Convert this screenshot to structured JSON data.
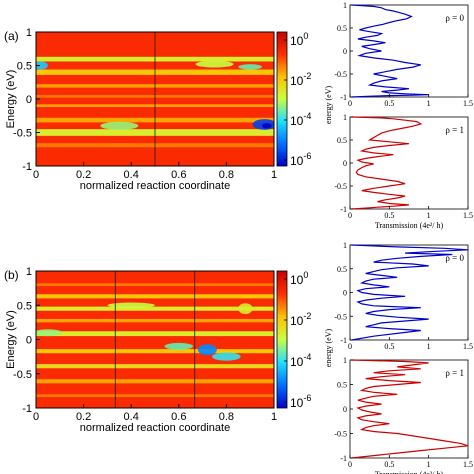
{
  "chart_data": [
    {
      "id": "a-heatmap",
      "type": "heatmap",
      "panel_label": "(a)",
      "xlabel": "normalized reaction coordinate",
      "ylabel": "Energy (eV)",
      "xlim": [
        0,
        1
      ],
      "ylim": [
        -1,
        1
      ],
      "xticks": [
        "0",
        "0.2",
        "0.4",
        "0.6",
        "0.8",
        "1"
      ],
      "yticks": [
        "-1",
        "-0.5",
        "0",
        "0.5",
        "1"
      ],
      "vlines": [
        0.5
      ],
      "colorbar": {
        "scale": "log",
        "range": [
          1e-06,
          1
        ],
        "labels": [
          "10^0",
          "10^-2",
          "10^-4",
          "10^-6"
        ]
      },
      "bands": [
        {
          "e0": 0.56,
          "e1": 0.63,
          "level": 0.55
        },
        {
          "e0": 0.36,
          "e1": 0.44,
          "level": 0.65
        },
        {
          "e0": 0.17,
          "e1": 0.22,
          "level": 0.7
        },
        {
          "e0": 0.02,
          "e1": 0.06,
          "level": 0.75
        },
        {
          "e0": -0.12,
          "e1": -0.08,
          "level": 0.7
        },
        {
          "e0": -0.35,
          "e1": -0.28,
          "level": 0.7
        },
        {
          "e0": -0.55,
          "e1": -0.45,
          "level": 0.55
        },
        {
          "e0": -0.72,
          "e1": -0.66,
          "level": 0.75
        }
      ],
      "spots": [
        {
          "x": 0.02,
          "y": 0.5,
          "rx": 0.03,
          "ry": 0.06,
          "level": 0.3
        },
        {
          "x": 0.75,
          "y": 0.52,
          "rx": 0.08,
          "ry": 0.05,
          "level": 0.5
        },
        {
          "x": 0.9,
          "y": 0.48,
          "rx": 0.05,
          "ry": 0.04,
          "level": 0.4
        },
        {
          "x": 0.35,
          "y": -0.4,
          "rx": 0.08,
          "ry": 0.06,
          "level": 0.45
        },
        {
          "x": 0.96,
          "y": -0.38,
          "rx": 0.05,
          "ry": 0.08,
          "level": 0.1
        },
        {
          "x": 0.97,
          "y": -0.4,
          "rx": 0.02,
          "ry": 0.04,
          "level": 0.0
        }
      ]
    },
    {
      "id": "b-heatmap",
      "type": "heatmap",
      "panel_label": "(b)",
      "xlabel": "normalized reaction coordinate",
      "ylabel": "Energy (eV)",
      "xlim": [
        0,
        1
      ],
      "ylim": [
        -1,
        1
      ],
      "xticks": [
        "0",
        "0.2",
        "0.4",
        "0.6",
        "0.8",
        "1"
      ],
      "yticks": [
        "-1",
        "-0.5",
        "0",
        "0.5",
        "1"
      ],
      "vlines": [
        0.333,
        0.667
      ],
      "colorbar": {
        "scale": "log",
        "range": [
          1e-06,
          1
        ],
        "labels": [
          "10^0",
          "10^-2",
          "10^-4",
          "10^-6"
        ]
      },
      "bands": [
        {
          "e0": 0.78,
          "e1": 0.82,
          "level": 0.75
        },
        {
          "e0": 0.6,
          "e1": 0.66,
          "level": 0.65
        },
        {
          "e0": 0.42,
          "e1": 0.48,
          "level": 0.55
        },
        {
          "e0": 0.25,
          "e1": 0.3,
          "level": 0.7
        },
        {
          "e0": 0.05,
          "e1": 0.12,
          "level": 0.55
        },
        {
          "e0": -0.2,
          "e1": -0.14,
          "level": 0.65
        },
        {
          "e0": -0.42,
          "e1": -0.36,
          "level": 0.6
        },
        {
          "e0": -0.64,
          "e1": -0.58,
          "level": 0.7
        },
        {
          "e0": -0.84,
          "e1": -0.8,
          "level": 0.75
        }
      ],
      "spots": [
        {
          "x": 0.05,
          "y": 0.1,
          "rx": 0.06,
          "ry": 0.05,
          "level": 0.45
        },
        {
          "x": 0.4,
          "y": 0.5,
          "rx": 0.1,
          "ry": 0.04,
          "level": 0.5
        },
        {
          "x": 0.6,
          "y": -0.1,
          "rx": 0.06,
          "ry": 0.05,
          "level": 0.4
        },
        {
          "x": 0.72,
          "y": -0.15,
          "rx": 0.04,
          "ry": 0.08,
          "level": 0.2
        },
        {
          "x": 0.8,
          "y": -0.25,
          "rx": 0.06,
          "ry": 0.06,
          "level": 0.35
        },
        {
          "x": 0.88,
          "y": 0.45,
          "rx": 0.03,
          "ry": 0.08,
          "level": 0.55
        }
      ]
    },
    {
      "id": "a-top",
      "type": "line",
      "annotation": "ρ = 0",
      "xlim": [
        0,
        1.5
      ],
      "ylim": [
        -1,
        1
      ],
      "xticks": [
        "0",
        "0.5",
        "1",
        "1.5"
      ],
      "yticks": [
        "-1",
        "-0.5",
        "0",
        "0.5",
        "1"
      ],
      "ylabel": "energy (eV)",
      "color": "#0000cc",
      "series": [
        {
          "x": [
            0.02,
            0.3,
            0.4,
            0.45,
            0.55,
            0.62,
            0.7,
            0.78,
            0.72,
            0.6,
            0.5,
            0.42,
            0.3,
            0.2,
            0.12,
            0.25,
            0.4,
            0.35,
            0.2,
            0.1,
            0.3,
            0.45,
            0.3,
            0.15,
            0.25,
            0.4,
            0.2,
            0.12,
            0.3,
            0.55,
            0.7,
            0.9,
            0.8,
            0.6,
            0.45,
            0.3,
            0.45,
            0.6,
            0.4,
            0.3,
            0.25,
            0.45,
            0.75,
            0.6,
            0.4,
            0.5,
            0.7,
            1.0,
            0.8,
            0.5,
            0.3,
            0.02
          ],
          "y": [
            1.0,
            0.97,
            0.94,
            0.9,
            0.87,
            0.84,
            0.8,
            0.75,
            0.7,
            0.66,
            0.62,
            0.58,
            0.54,
            0.5,
            0.46,
            0.42,
            0.38,
            0.34,
            0.3,
            0.26,
            0.22,
            0.18,
            0.14,
            0.1,
            0.05,
            0.0,
            -0.05,
            -0.1,
            -0.15,
            -0.2,
            -0.25,
            -0.3,
            -0.35,
            -0.4,
            -0.45,
            -0.5,
            -0.55,
            -0.6,
            -0.65,
            -0.7,
            -0.74,
            -0.78,
            -0.82,
            -0.85,
            -0.88,
            -0.91,
            -0.93,
            -0.95,
            -0.96,
            -0.97,
            -0.98,
            -1.0
          ]
        }
      ]
    },
    {
      "id": "a-bottom",
      "type": "line",
      "annotation": "ρ = 1",
      "xlim": [
        0,
        1.5
      ],
      "ylim": [
        -1,
        1
      ],
      "xticks": [
        "0",
        "0.5",
        "1",
        "1.5"
      ],
      "yticks": [
        "-1",
        "-0.5",
        "0",
        "0.5",
        "1"
      ],
      "xlabel": "Transmission (4e²/ h)",
      "color": "#cc0000",
      "series": [
        {
          "x": [
            0.02,
            0.4,
            0.55,
            0.7,
            0.85,
            0.9,
            0.8,
            0.65,
            0.5,
            0.4,
            0.35,
            0.3,
            0.25,
            0.5,
            0.75,
            0.5,
            0.3,
            0.2,
            0.15,
            0.3,
            0.55,
            0.35,
            0.2,
            0.1,
            0.15,
            0.3,
            0.2,
            0.15,
            0.1,
            0.08,
            0.1,
            0.2,
            0.4,
            0.6,
            0.7,
            0.5,
            0.3,
            0.15,
            0.3,
            0.5,
            0.7,
            0.6,
            0.45,
            0.35,
            0.5,
            0.75,
            0.55,
            0.35,
            0.2,
            0.02
          ],
          "y": [
            1.0,
            0.98,
            0.96,
            0.93,
            0.9,
            0.85,
            0.8,
            0.75,
            0.7,
            0.65,
            0.6,
            0.55,
            0.5,
            0.46,
            0.42,
            0.38,
            0.34,
            0.3,
            0.26,
            0.22,
            0.18,
            0.14,
            0.1,
            0.06,
            0.02,
            -0.02,
            -0.06,
            -0.1,
            -0.15,
            -0.2,
            -0.25,
            -0.3,
            -0.35,
            -0.4,
            -0.45,
            -0.5,
            -0.55,
            -0.6,
            -0.64,
            -0.68,
            -0.72,
            -0.76,
            -0.8,
            -0.84,
            -0.88,
            -0.91,
            -0.94,
            -0.96,
            -0.98,
            -1.0
          ]
        }
      ]
    },
    {
      "id": "b-top",
      "type": "line",
      "annotation": "ρ = 0",
      "xlim": [
        0,
        1.5
      ],
      "ylim": [
        -1,
        1
      ],
      "xticks": [
        "0",
        "0.5",
        "1",
        "1.5"
      ],
      "yticks": [
        "-1",
        "-0.5",
        "0",
        "0.5",
        "1"
      ],
      "ylabel": "energy (eV)",
      "color": "#0000cc",
      "series": [
        {
          "x": [
            0.02,
            0.6,
            1.2,
            1.5,
            1.0,
            0.7,
            1.3,
            0.9,
            0.6,
            0.4,
            0.3,
            0.8,
            1.0,
            0.6,
            0.4,
            0.3,
            0.2,
            0.4,
            0.6,
            0.3,
            0.2,
            0.15,
            0.3,
            0.5,
            0.2,
            0.1,
            0.15,
            0.3,
            0.7,
            0.4,
            0.2,
            0.1,
            0.15,
            0.3,
            0.9,
            0.5,
            0.3,
            0.2,
            0.35,
            0.6,
            1.0,
            0.7,
            0.4,
            0.3,
            0.2,
            0.5,
            0.9,
            0.6,
            0.3,
            0.02
          ],
          "y": [
            1.0,
            0.96,
            0.93,
            0.9,
            0.86,
            0.83,
            0.8,
            0.76,
            0.72,
            0.68,
            0.64,
            0.6,
            0.56,
            0.52,
            0.48,
            0.44,
            0.4,
            0.36,
            0.32,
            0.28,
            0.24,
            0.2,
            0.16,
            0.12,
            0.08,
            0.04,
            0.0,
            -0.04,
            -0.08,
            -0.12,
            -0.16,
            -0.2,
            -0.24,
            -0.28,
            -0.32,
            -0.36,
            -0.4,
            -0.44,
            -0.48,
            -0.52,
            -0.56,
            -0.6,
            -0.64,
            -0.68,
            -0.72,
            -0.76,
            -0.8,
            -0.86,
            -0.92,
            -1.0
          ]
        }
      ]
    },
    {
      "id": "b-bottom",
      "type": "line",
      "annotation": "ρ = 1",
      "xlim": [
        0,
        1.5
      ],
      "ylim": [
        -1,
        1
      ],
      "xticks": [
        "0",
        "0.5",
        "1",
        "1.5"
      ],
      "yticks": [
        "-1",
        "-0.5",
        "0",
        "0.5",
        "1"
      ],
      "xlabel": "Transmission (4e²/ h)",
      "color": "#cc0000",
      "series": [
        {
          "x": [
            0.02,
            0.7,
            1.0,
            0.8,
            0.6,
            0.9,
            0.5,
            0.3,
            0.7,
            0.4,
            0.2,
            0.5,
            0.9,
            0.6,
            0.3,
            0.2,
            0.15,
            0.3,
            0.6,
            0.3,
            0.2,
            0.1,
            0.2,
            0.4,
            0.2,
            0.1,
            0.15,
            0.25,
            0.4,
            0.2,
            0.1,
            0.15,
            0.3,
            0.5,
            0.3,
            0.2,
            0.15,
            0.3,
            0.6,
            0.8,
            1.0,
            1.2,
            1.4,
            1.5,
            1.2,
            0.9,
            0.6,
            0.3,
            0.02
          ],
          "y": [
            1.0,
            0.97,
            0.94,
            0.9,
            0.86,
            0.82,
            0.78,
            0.74,
            0.7,
            0.66,
            0.62,
            0.58,
            0.54,
            0.5,
            0.46,
            0.42,
            0.38,
            0.34,
            0.3,
            0.26,
            0.22,
            0.18,
            0.14,
            0.1,
            0.06,
            0.02,
            -0.02,
            -0.06,
            -0.1,
            -0.14,
            -0.18,
            -0.22,
            -0.26,
            -0.3,
            -0.34,
            -0.38,
            -0.42,
            -0.46,
            -0.5,
            -0.55,
            -0.6,
            -0.65,
            -0.7,
            -0.75,
            -0.8,
            -0.85,
            -0.9,
            -0.95,
            -1.0
          ]
        }
      ]
    }
  ],
  "colors": {
    "stops": [
      "#0000c8",
      "#0070ff",
      "#20e0ff",
      "#c8ff40",
      "#ffc000",
      "#ff3000",
      "#c80000"
    ],
    "background_level": 0.85,
    "axis": "#000000",
    "vline": "#202020"
  }
}
